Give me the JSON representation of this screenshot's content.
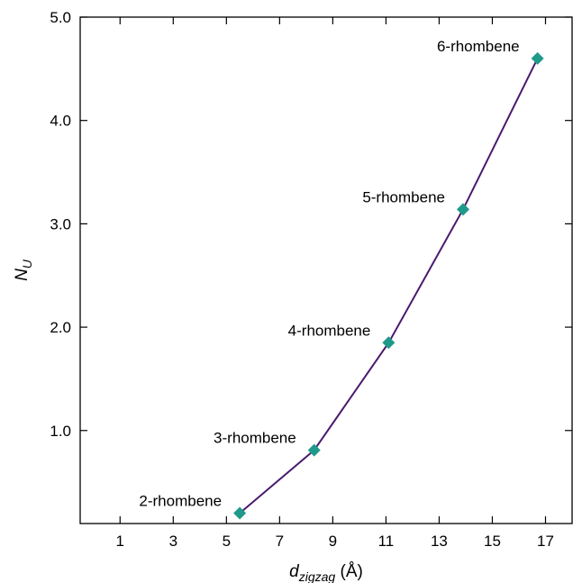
{
  "chart_data": {
    "type": "line",
    "xlabel": {
      "main": "d",
      "sub": "zigzag",
      "unit": " (Å)"
    },
    "ylabel": {
      "main": "N",
      "sub": "U"
    },
    "xlim": [
      -0.5,
      18
    ],
    "ylim": [
      0.1,
      5.0
    ],
    "x_ticks": [
      1,
      3,
      5,
      7,
      9,
      11,
      13,
      15,
      17
    ],
    "y_ticks": [
      1.0,
      2.0,
      3.0,
      4.0,
      5.0
    ],
    "y_tick_labels": [
      "1.0",
      "2.0",
      "3.0",
      "4.0",
      "5.0"
    ],
    "grid": false,
    "series": [
      {
        "color": "#4a1a6e",
        "marker": "diamond",
        "marker_color": "#1f9a8a",
        "x": [
          5.5,
          8.3,
          11.1,
          13.9,
          16.7
        ],
        "y": [
          0.2,
          0.81,
          1.85,
          3.14,
          4.6
        ],
        "labels": [
          "2-rhombene",
          "3-rhombene",
          "4-rhombene",
          "5-rhombene",
          "6-rhombene"
        ]
      }
    ]
  }
}
